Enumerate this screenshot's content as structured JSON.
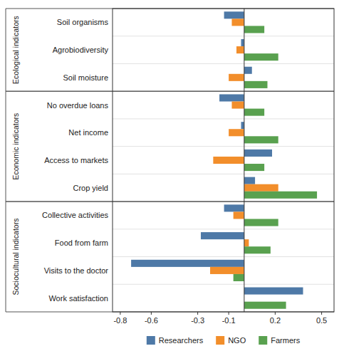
{
  "chart_data": {
    "type": "bar",
    "orientation": "horizontal",
    "categories": [
      "Soil organisms",
      "Agrobiodiversity",
      "Soil moisture",
      "No overdue loans",
      "Net income",
      "Access to markets",
      "Crop yield",
      "Collective activities",
      "Food from farm",
      "Visits to the doctor",
      "Work satisfaction"
    ],
    "groups": [
      {
        "label": "Ecological indicators",
        "categories": [
          "Soil organisms",
          "Agrobiodiversity",
          "Soil moisture"
        ]
      },
      {
        "label": "Economic indicators",
        "categories": [
          "No overdue loans",
          "Net income",
          "Access to markets",
          "Crop yield"
        ]
      },
      {
        "label": "Sociocultural indicators",
        "categories": [
          "Collective activities",
          "Food from farm",
          "Visits to the doctor",
          "Work satisfaction"
        ]
      }
    ],
    "series": [
      {
        "name": "Researchers",
        "color": "#4e79a7",
        "values": [
          -0.13,
          -0.02,
          0.05,
          -0.16,
          -0.02,
          0.18,
          0.07,
          -0.13,
          -0.28,
          -0.73,
          0.38
        ]
      },
      {
        "name": "NGO",
        "color": "#f28e2b",
        "values": [
          -0.08,
          -0.05,
          -0.1,
          -0.08,
          -0.1,
          -0.2,
          0.22,
          -0.07,
          0.03,
          -0.22,
          0.0
        ]
      },
      {
        "name": "Farmers",
        "color": "#59a14f",
        "values": [
          0.13,
          0.22,
          0.15,
          0.13,
          0.22,
          0.13,
          0.47,
          0.22,
          0.17,
          -0.07,
          0.27
        ]
      }
    ],
    "xlim": [
      -0.85,
      0.58
    ],
    "xticks": [
      -0.8,
      -0.6,
      -0.3,
      -0.1,
      0.2,
      0.5
    ],
    "grid": false,
    "legend": "bottom"
  }
}
